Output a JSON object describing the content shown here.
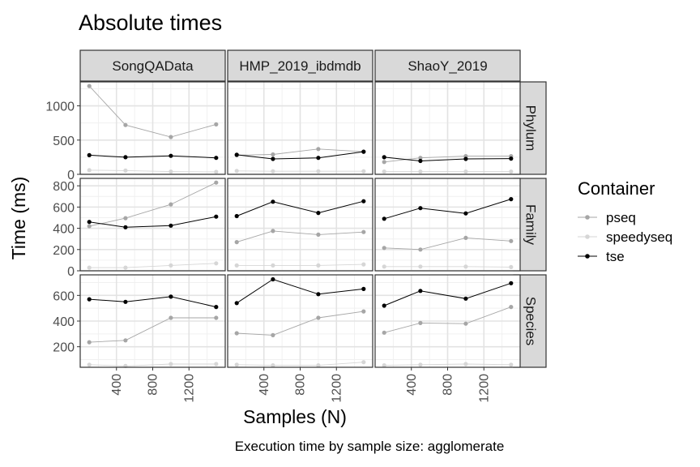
{
  "chart_data": {
    "type": "line",
    "title": "Absolute times",
    "caption": "Execution time by sample size: agglomerate",
    "xlabel": "Samples (N)",
    "ylabel": "Time (ms)",
    "column_facets": [
      "SongQAData",
      "HMP_2019_ibdmdb",
      "ShaoY_2019"
    ],
    "row_facets": [
      "Phylum",
      "Family",
      "Species"
    ],
    "x": [
      100,
      500,
      1000,
      1500
    ],
    "xlim": [
      0,
      1600
    ],
    "x_ticks": [
      400,
      800,
      1200
    ],
    "y_axis": {
      "Phylum": {
        "ylim": [
          0,
          1350
        ],
        "ticks": [
          0,
          500,
          1000
        ]
      },
      "Family": {
        "ylim": [
          0,
          870
        ],
        "ticks": [
          0,
          200,
          400,
          600,
          800
        ]
      },
      "Species": {
        "ylim": [
          40,
          760
        ],
        "ticks": [
          200,
          400,
          600
        ]
      }
    },
    "legend": {
      "title": "Container",
      "position": "right",
      "entries": [
        {
          "name": "pseq",
          "color": "#a6a6a6"
        },
        {
          "name": "speedyseq",
          "color": "#d6d6d6"
        },
        {
          "name": "tse",
          "color": "#000000"
        }
      ]
    },
    "panels": [
      {
        "row": "Phylum",
        "col": "SongQAData",
        "series": {
          "pseq": [
            1290,
            720,
            545,
            730
          ],
          "speedyseq": [
            60,
            55,
            40,
            35
          ],
          "tse": [
            280,
            250,
            270,
            240
          ]
        }
      },
      {
        "row": "Phylum",
        "col": "HMP_2019_ibdmdb",
        "series": {
          "pseq": [
            280,
            290,
            370,
            330
          ],
          "speedyseq": [
            50,
            45,
            45,
            45
          ],
          "tse": [
            285,
            225,
            240,
            330
          ]
        }
      },
      {
        "row": "Phylum",
        "col": "ShaoY_2019",
        "series": {
          "pseq": [
            180,
            240,
            265,
            265
          ],
          "speedyseq": [
            40,
            40,
            40,
            40
          ],
          "tse": [
            250,
            195,
            225,
            230
          ]
        }
      },
      {
        "row": "Family",
        "col": "SongQAData",
        "series": {
          "pseq": [
            420,
            495,
            625,
            830
          ],
          "speedyseq": [
            30,
            30,
            50,
            70
          ],
          "tse": [
            460,
            410,
            425,
            510
          ]
        }
      },
      {
        "row": "Family",
        "col": "HMP_2019_ibdmdb",
        "series": {
          "pseq": [
            270,
            375,
            340,
            365
          ],
          "speedyseq": [
            50,
            50,
            50,
            60
          ],
          "tse": [
            515,
            650,
            545,
            655
          ]
        }
      },
      {
        "row": "Family",
        "col": "ShaoY_2019",
        "series": {
          "pseq": [
            215,
            200,
            310,
            280
          ],
          "speedyseq": [
            40,
            40,
            40,
            35
          ],
          "tse": [
            490,
            590,
            540,
            675
          ]
        }
      },
      {
        "row": "Species",
        "col": "SongQAData",
        "series": {
          "pseq": [
            235,
            250,
            425,
            425
          ],
          "speedyseq": [
            60,
            50,
            65,
            65
          ],
          "tse": [
            570,
            550,
            590,
            510
          ]
        }
      },
      {
        "row": "Species",
        "col": "HMP_2019_ibdmdb",
        "series": {
          "pseq": [
            305,
            290,
            425,
            475
          ],
          "speedyseq": [
            60,
            55,
            55,
            80
          ],
          "tse": [
            540,
            725,
            610,
            650
          ]
        }
      },
      {
        "row": "Species",
        "col": "ShaoY_2019",
        "series": {
          "pseq": [
            310,
            385,
            380,
            510
          ],
          "speedyseq": [
            55,
            60,
            65,
            60
          ],
          "tse": [
            520,
            635,
            575,
            695
          ]
        }
      }
    ]
  }
}
